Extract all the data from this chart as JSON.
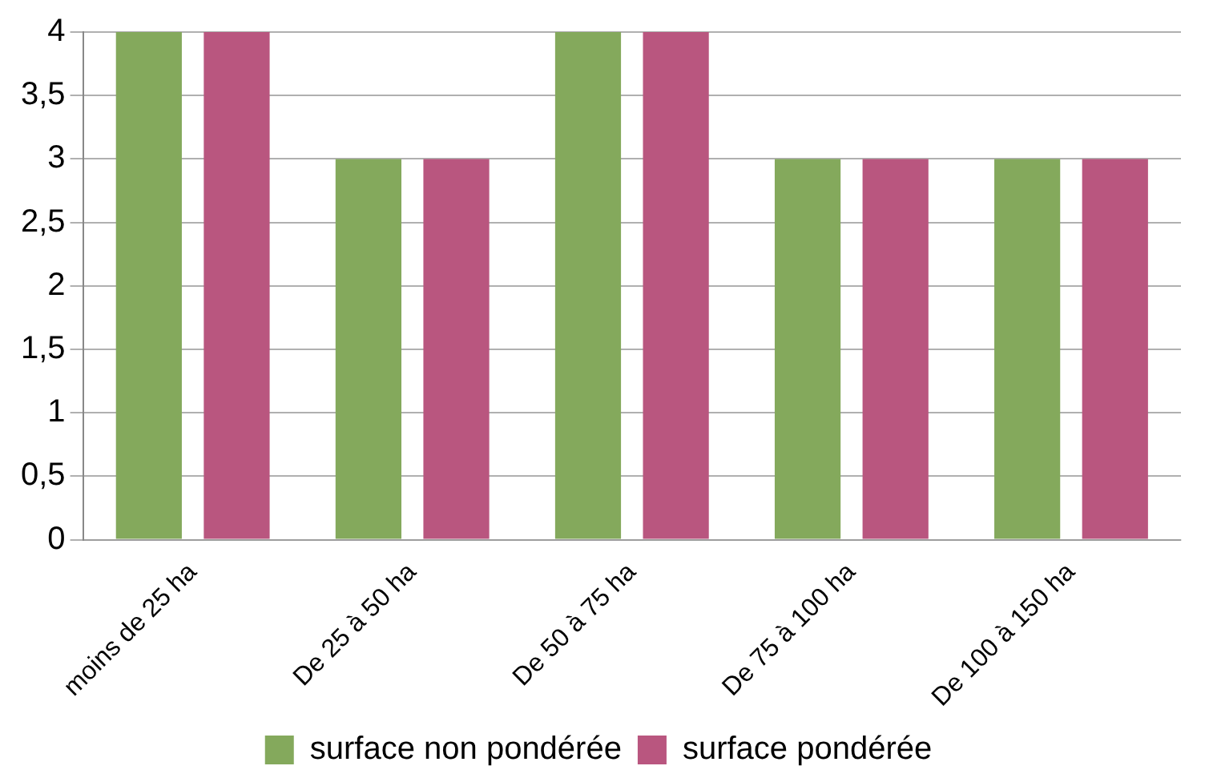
{
  "chart_data": {
    "type": "bar",
    "categories": [
      "moins de 25 ha",
      "De 25 à 50 ha",
      "De 50 à 75 ha",
      "De 75 à 100 ha",
      "De 100 à 150 ha"
    ],
    "series": [
      {
        "name": "surface non pondérée",
        "color": "#84a95c",
        "values": [
          4,
          3,
          4,
          3,
          3
        ]
      },
      {
        "name": "surface pondérée",
        "color": "#b9567f",
        "values": [
          4,
          3,
          4,
          3,
          3
        ]
      }
    ],
    "ylim": [
      0,
      4
    ],
    "yticks": [
      0,
      {
        "value": 0.5,
        "label": "0,5"
      },
      1,
      {
        "value": 1.5,
        "label": "1,5"
      },
      2,
      {
        "value": 2.5,
        "label": "2,5"
      },
      3,
      {
        "value": 3.5,
        "label": "3,5"
      },
      4
    ],
    "grid": "y",
    "legend": "bottom"
  }
}
